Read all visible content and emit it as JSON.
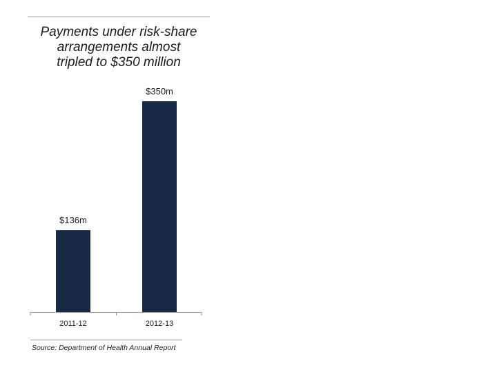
{
  "title_lines": [
    "Payments under risk-share",
    "arrangements almost",
    "tripled to $350 million"
  ],
  "source": "Source: Department of Health Annual Report",
  "colors": {
    "bar": "#172945",
    "axis": "#9a9a9a",
    "text": "#1b1b1b"
  },
  "chart_data": {
    "type": "bar",
    "title": "Payments under risk-share arrangements almost tripled to $350 million",
    "categories": [
      "2011-12",
      "2012-13"
    ],
    "values": [
      136,
      350
    ],
    "unit": "$m",
    "data_labels": [
      "$136m",
      "$350m"
    ],
    "xlabel": "",
    "ylabel": "",
    "ylim": [
      0,
      350
    ],
    "grid": false,
    "legend": "none"
  }
}
